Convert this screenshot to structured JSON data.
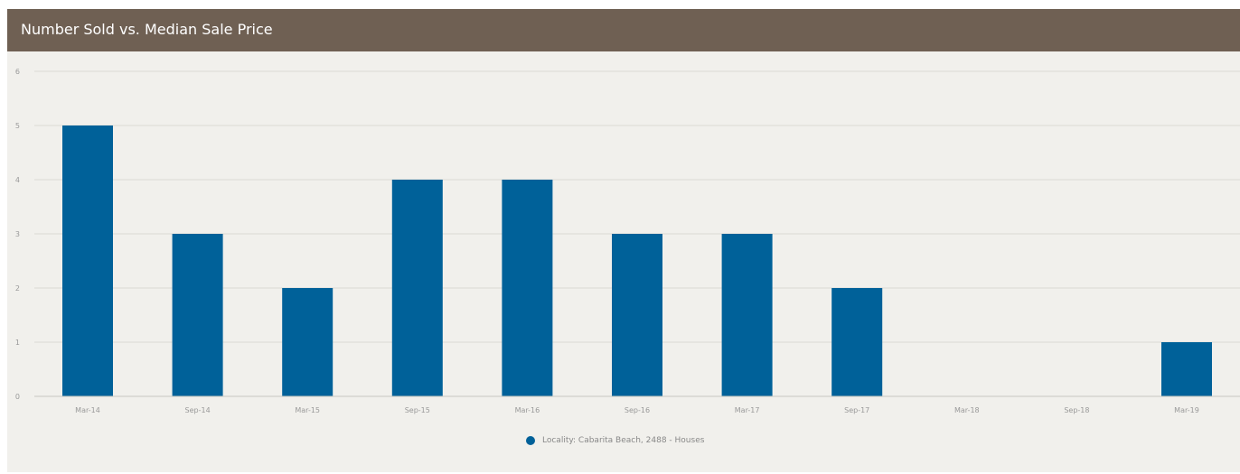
{
  "header": {
    "title": "Number Sold vs. Median Sale Price"
  },
  "colors": {
    "header_bg": "#6f6053",
    "panel_bg": "#f1f0ec",
    "series": "#006199",
    "grid": "#dcdad4",
    "tick_text": "#999999"
  },
  "chart_data": {
    "type": "bar",
    "categories": [
      "Mar-14",
      "Sep-14",
      "Mar-15",
      "Sep-15",
      "Mar-16",
      "Sep-16",
      "Mar-17",
      "Sep-17",
      "Mar-18",
      "Sep-18",
      "Mar-19"
    ],
    "series": [
      {
        "name": "Locality: Cabarita Beach, 2488 - Houses",
        "values": [
          5,
          3,
          2,
          4,
          4,
          3,
          3,
          2,
          0,
          0,
          1
        ]
      }
    ],
    "title": "Number Sold vs. Median Sale Price",
    "xlabel": "",
    "ylabel": "",
    "ylim": [
      0,
      6
    ],
    "yticks": [
      0,
      1,
      2,
      3,
      4,
      5,
      6
    ],
    "grid": true,
    "legend_position": "bottom-center"
  }
}
